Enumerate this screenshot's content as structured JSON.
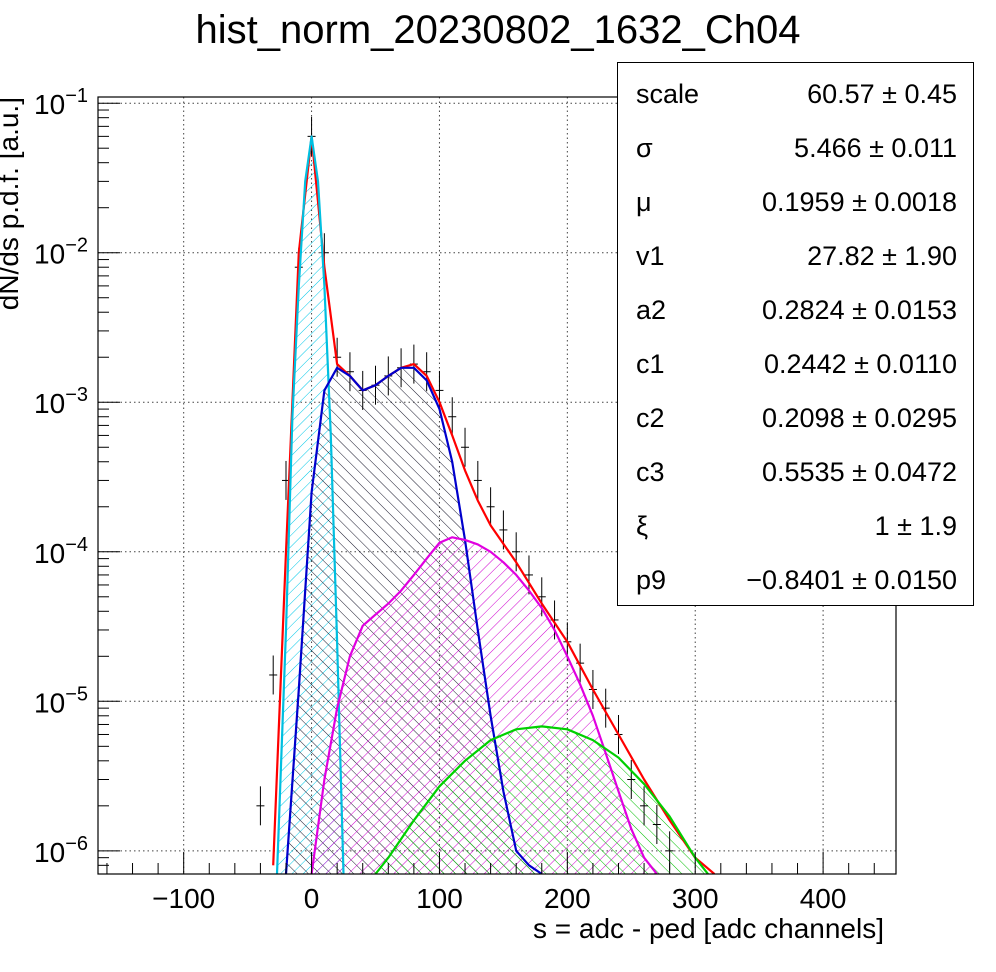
{
  "chart_data": {
    "type": "histogram",
    "title": "hist_norm_20230802_1632_Ch04",
    "xlabel": "s = adc - ped [adc channels]",
    "ylabel": "dN/ds p.d.f. [a.u.]",
    "xlim": [
      -167,
      457
    ],
    "ylim": [
      7e-07,
      0.11
    ],
    "yscale": "log",
    "grid": true,
    "x_ticks": [
      -100,
      0,
      100,
      200,
      300,
      400
    ],
    "y_ticks": [
      {
        "value": 1e-06,
        "exp": "−6"
      },
      {
        "value": 1e-05,
        "exp": "−5"
      },
      {
        "value": 0.0001,
        "exp": "−4"
      },
      {
        "value": 0.001,
        "exp": "−3"
      },
      {
        "value": 0.01,
        "exp": "−2"
      },
      {
        "value": 0.1,
        "exp": "−1"
      }
    ],
    "data_points": {
      "x": [
        -40,
        -30,
        -20,
        -10,
        0,
        10,
        20,
        30,
        40,
        50,
        60,
        70,
        80,
        90,
        100,
        110,
        120,
        130,
        140,
        150,
        160,
        170,
        180,
        190,
        200,
        210,
        220,
        230,
        240,
        250,
        260,
        270,
        280
      ],
      "y": [
        2e-06,
        1.5e-05,
        0.0003,
        0.008,
        0.06,
        0.01,
        0.002,
        0.0016,
        0.0012,
        0.0013,
        0.0015,
        0.0017,
        0.0018,
        0.0016,
        0.0012,
        0.0008,
        0.0005,
        0.0003,
        0.0002,
        0.00014,
        0.0001,
        7e-05,
        5e-05,
        3.5e-05,
        2.5e-05,
        1.8e-05,
        1.2e-05,
        9e-06,
        6e-06,
        3e-06,
        2e-06,
        1.5e-06,
        1e-06
      ]
    },
    "series": [
      {
        "name": "",
        "color": "#ff0000",
        "x": [
          -30,
          -20,
          -10,
          0,
          10,
          20,
          30,
          40,
          50,
          60,
          70,
          80,
          90,
          100,
          110,
          120,
          130,
          140,
          160,
          180,
          200,
          220,
          240,
          260,
          280,
          300,
          315
        ],
        "y": [
          8e-07,
          0.0001,
          0.01,
          0.06,
          0.008,
          0.0018,
          0.0015,
          0.0012,
          0.0013,
          0.0015,
          0.0017,
          0.0018,
          0.0015,
          0.001,
          0.0006,
          0.00035,
          0.00022,
          0.00015,
          8.5e-05,
          4.5e-05,
          2.5e-05,
          1.2e-05,
          6e-06,
          3e-06,
          1.6e-06,
          9e-07,
          7e-07
        ]
      },
      {
        "name": "",
        "color": "#00bfe0",
        "fill": "#00e5ff",
        "x": [
          -27,
          -20,
          -15,
          -10,
          -5,
          0,
          5,
          10,
          15,
          20,
          25
        ],
        "y": [
          7e-07,
          3e-05,
          0.0008,
          0.006,
          0.03,
          0.06,
          0.03,
          0.006,
          0.0006,
          2.5e-05,
          7e-07
        ]
      },
      {
        "name": "",
        "color": "#0000cc",
        "fill": "#000066",
        "x": [
          -20,
          -10,
          0,
          10,
          20,
          30,
          40,
          50,
          60,
          70,
          80,
          90,
          100,
          110,
          120,
          130,
          140,
          150,
          160,
          170,
          180
        ],
        "y": [
          7e-07,
          1.2e-05,
          0.00025,
          0.0012,
          0.0017,
          0.0015,
          0.0012,
          0.0013,
          0.0015,
          0.0017,
          0.0017,
          0.0014,
          0.0009,
          0.0004,
          0.00012,
          3e-05,
          8e-06,
          2.5e-06,
          1e-06,
          8e-07,
          7e-07
        ]
      },
      {
        "name": "",
        "color": "#e000e0",
        "fill": "#e000e0",
        "x": [
          0,
          10,
          20,
          30,
          40,
          50,
          60,
          70,
          80,
          90,
          100,
          110,
          120,
          130,
          140,
          150,
          160,
          170,
          180,
          190,
          200,
          210,
          220,
          230,
          240,
          250,
          260,
          270
        ],
        "y": [
          7e-07,
          3e-06,
          9e-06,
          2e-05,
          3.2e-05,
          3.8e-05,
          4.5e-05,
          5.5e-05,
          7e-05,
          9e-05,
          0.000115,
          0.000125,
          0.00012,
          0.000112,
          0.0001,
          8.5e-05,
          7e-05,
          5.5e-05,
          4.2e-05,
          3e-05,
          2e-05,
          1.3e-05,
          8e-06,
          4.5e-06,
          2.5e-06,
          1.4e-06,
          9e-07,
          7e-07
        ]
      },
      {
        "name": "",
        "color": "#00d000",
        "fill": "#00c000",
        "x": [
          50,
          60,
          80,
          100,
          120,
          140,
          160,
          180,
          200,
          220,
          240,
          260,
          280,
          300,
          310
        ],
        "y": [
          7e-07,
          9e-07,
          1.6e-06,
          2.7e-06,
          4e-06,
          5.5e-06,
          6.5e-06,
          6.8e-06,
          6.5e-06,
          5.5e-06,
          4.2e-06,
          2.8e-06,
          1.7e-06,
          9e-07,
          7e-07
        ]
      }
    ],
    "stats_box": [
      {
        "name": "scale",
        "value": "60.57 ± 0.45"
      },
      {
        "name": "σ",
        "value": "5.466 ± 0.011"
      },
      {
        "name": "μ",
        "value": "0.1959 ± 0.0018"
      },
      {
        "name": "v1",
        "value": "27.82 ± 1.90"
      },
      {
        "name": "a2",
        "value": "0.2824 ± 0.0153"
      },
      {
        "name": "c1",
        "value": "0.2442 ± 0.0110"
      },
      {
        "name": "c2",
        "value": "0.2098 ± 0.0295"
      },
      {
        "name": "c3",
        "value": "0.5535 ± 0.0472"
      },
      {
        "name": "ξ",
        "value": "1 ± 1.9"
      },
      {
        "name": "p9",
        "value": "−0.8401 ± 0.0150"
      }
    ]
  }
}
